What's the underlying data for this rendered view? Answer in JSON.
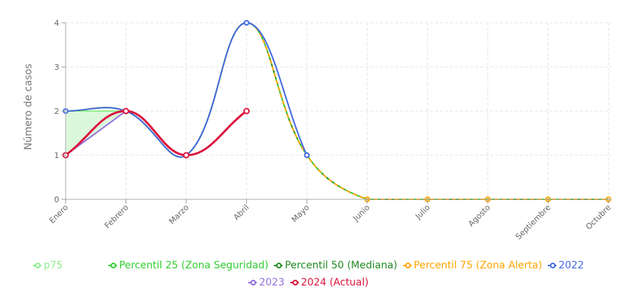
{
  "chart_data": {
    "type": "line",
    "title": "",
    "xlabel": "",
    "ylabel": "Número de casos",
    "ylim": [
      0,
      4
    ],
    "yticks": [
      "0",
      "1",
      "2",
      "3",
      "4"
    ],
    "grid": true,
    "legend_position": "bottom",
    "categories": [
      "Enero",
      "Febrero",
      "Marzo",
      "Abril",
      "Mayo",
      "Junio",
      "Julio",
      "Agosto",
      "Septiembre",
      "Octubre"
    ],
    "series": [
      {
        "name": "p75",
        "color": "#90ee90",
        "values": [
          2,
          2,
          null,
          null,
          null,
          null,
          null,
          null,
          null,
          null
        ],
        "fill": "#dcf8dc"
      },
      {
        "name": "Percentil 25 (Zona Seguridad)",
        "color": "#32cd32",
        "dashed": true,
        "values": [
          2,
          2,
          1,
          4,
          1,
          0,
          0,
          0,
          0,
          0
        ]
      },
      {
        "name": "Percentil 50 (Mediana)",
        "color": "#228b22",
        "dashed": true,
        "values": [
          2,
          2,
          1,
          4,
          1,
          0,
          0,
          0,
          0,
          0
        ]
      },
      {
        "name": "Percentil 75 (Zona Alerta)",
        "color": "#ffa500",
        "dashed": true,
        "values": [
          2,
          2,
          1,
          4,
          1,
          0,
          0,
          0,
          0,
          0
        ]
      },
      {
        "name": "2022",
        "color": "#4169e1",
        "values": [
          2,
          2,
          1,
          4,
          1,
          null,
          null,
          null,
          null,
          null
        ]
      },
      {
        "name": "2023",
        "color": "#9370db",
        "values": [
          1,
          2,
          null,
          null,
          null,
          null,
          null,
          null,
          null,
          null
        ]
      },
      {
        "name": "2024 (Actual)",
        "color": "#dc143c",
        "values": [
          1,
          2,
          1,
          2,
          null,
          null,
          null,
          null,
          null,
          null
        ]
      }
    ]
  }
}
